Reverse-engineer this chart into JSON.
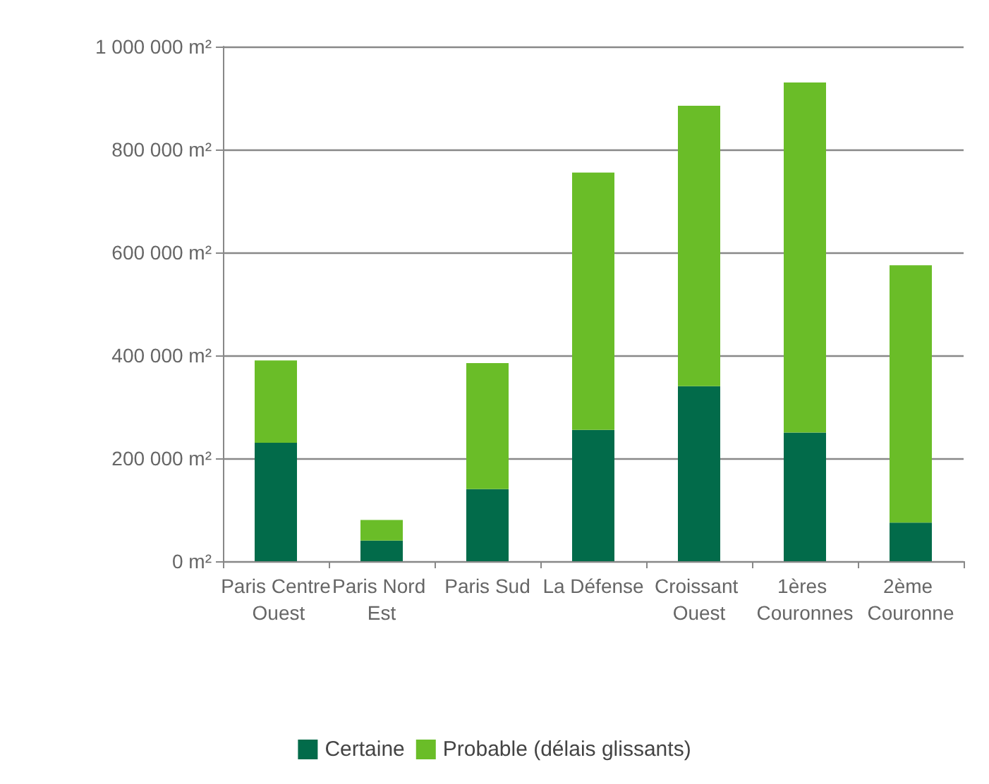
{
  "chart_data": {
    "type": "bar",
    "stacked": true,
    "categories": [
      "Paris Centre Ouest",
      "Paris Nord Est",
      "Paris Sud",
      "La Défense",
      "Croissant Ouest",
      "1ères Couronnes",
      "2ème Couronne"
    ],
    "series": [
      {
        "name": "Certaine",
        "color": "#026b4a",
        "values": [
          230000,
          40000,
          140000,
          255000,
          340000,
          250000,
          75000
        ]
      },
      {
        "name": "Probable (délais glissants)",
        "color": "#6abd28",
        "values": [
          160000,
          40000,
          245000,
          500000,
          545000,
          680000,
          500000
        ]
      }
    ],
    "ylim": [
      0,
      1000000
    ],
    "yticks": [
      {
        "value": 0,
        "label": "0 m²"
      },
      {
        "value": 200000,
        "label": "200 000 m²"
      },
      {
        "value": 400000,
        "label": "400 000 m²"
      },
      {
        "value": 600000,
        "label": "600 000 m²"
      },
      {
        "value": 800000,
        "label": "800 000 m²"
      },
      {
        "value": 1000000,
        "label": "1 000 000 m²"
      }
    ],
    "grid": "y",
    "legend": "bottom"
  }
}
